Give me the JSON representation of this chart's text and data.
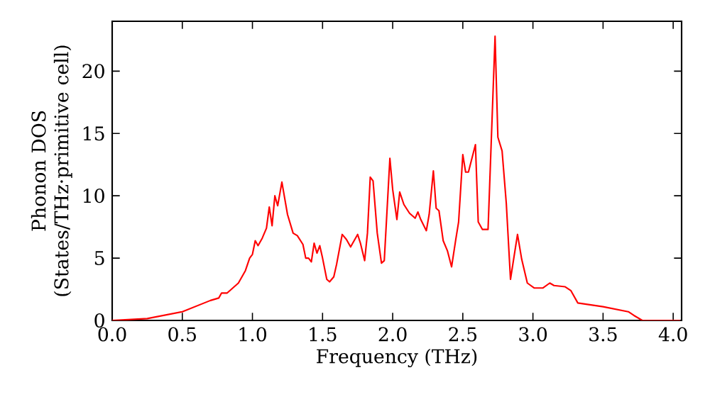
{
  "chart_data": {
    "type": "line",
    "xlabel": "Frequency (THz)",
    "ylabel": "Phonon DOS (States/THz·primitive cell)",
    "xlim": [
      0,
      4.06
    ],
    "ylim": [
      0,
      24
    ],
    "xticks": [
      {
        "value": 0,
        "label": "0.0"
      },
      {
        "value": 0.5,
        "label": "0.5"
      },
      {
        "value": 1,
        "label": "1.0"
      },
      {
        "value": 1.5,
        "label": "1.5"
      },
      {
        "value": 2,
        "label": "2.0"
      },
      {
        "value": 2.5,
        "label": "2.5"
      },
      {
        "value": 3,
        "label": "3.0"
      },
      {
        "value": 3.5,
        "label": "3.5"
      },
      {
        "value": 4,
        "label": "4.0"
      }
    ],
    "yticks": [
      0,
      5,
      10,
      15,
      20
    ],
    "grid": false,
    "marker": "none",
    "line_style": "solid",
    "series": [
      {
        "color": "#ff0000",
        "x": [
          0,
          0.25,
          0.5,
          0.7,
          0.76,
          0.78,
          0.82,
          0.9,
          0.95,
          0.98,
          1.0,
          1.02,
          1.04,
          1.07,
          1.1,
          1.12,
          1.14,
          1.16,
          1.18,
          1.21,
          1.25,
          1.29,
          1.32,
          1.36,
          1.38,
          1.4,
          1.42,
          1.44,
          1.46,
          1.48,
          1.5,
          1.53,
          1.55,
          1.58,
          1.6,
          1.64,
          1.67,
          1.7,
          1.75,
          1.77,
          1.8,
          1.82,
          1.84,
          1.86,
          1.89,
          1.92,
          1.94,
          1.98,
          2.0,
          2.03,
          2.05,
          2.08,
          2.12,
          2.16,
          2.18,
          2.2,
          2.24,
          2.26,
          2.29,
          2.31,
          2.33,
          2.36,
          2.39,
          2.42,
          2.45,
          2.47,
          2.5,
          2.52,
          2.54,
          2.59,
          2.61,
          2.64,
          2.68,
          2.73,
          2.75,
          2.78,
          2.81,
          2.84,
          2.89,
          2.92,
          2.96,
          3.01,
          3.07,
          3.12,
          3.15,
          3.23,
          3.27,
          3.32,
          3.5,
          3.68,
          3.72,
          3.78,
          4.05
        ],
        "values": [
          0,
          0.15,
          0.7,
          1.6,
          1.8,
          2.2,
          2.2,
          3.0,
          4.0,
          5.0,
          5.3,
          6.4,
          6.0,
          6.6,
          7.4,
          9.1,
          7.6,
          10.0,
          9.2,
          11.1,
          8.5,
          7.0,
          6.8,
          6.1,
          5.0,
          5.0,
          4.7,
          6.2,
          5.4,
          6.0,
          5.0,
          3.3,
          3.1,
          3.5,
          4.5,
          6.9,
          6.5,
          5.9,
          6.9,
          6.2,
          4.8,
          7.0,
          11.5,
          11.2,
          7.0,
          4.6,
          4.8,
          13.0,
          10.5,
          8.1,
          10.3,
          9.3,
          8.6,
          8.2,
          8.7,
          8.1,
          7.2,
          8.5,
          12.0,
          9.0,
          8.8,
          6.4,
          5.6,
          4.3,
          6.5,
          7.9,
          13.3,
          11.9,
          11.9,
          14.1,
          7.9,
          7.3,
          7.3,
          22.8,
          14.7,
          13.6,
          9.4,
          3.3,
          6.9,
          4.9,
          3.0,
          2.6,
          2.6,
          3.0,
          2.8,
          2.7,
          2.4,
          1.4,
          1.1,
          0.7,
          0.4,
          0,
          0
        ]
      }
    ]
  }
}
